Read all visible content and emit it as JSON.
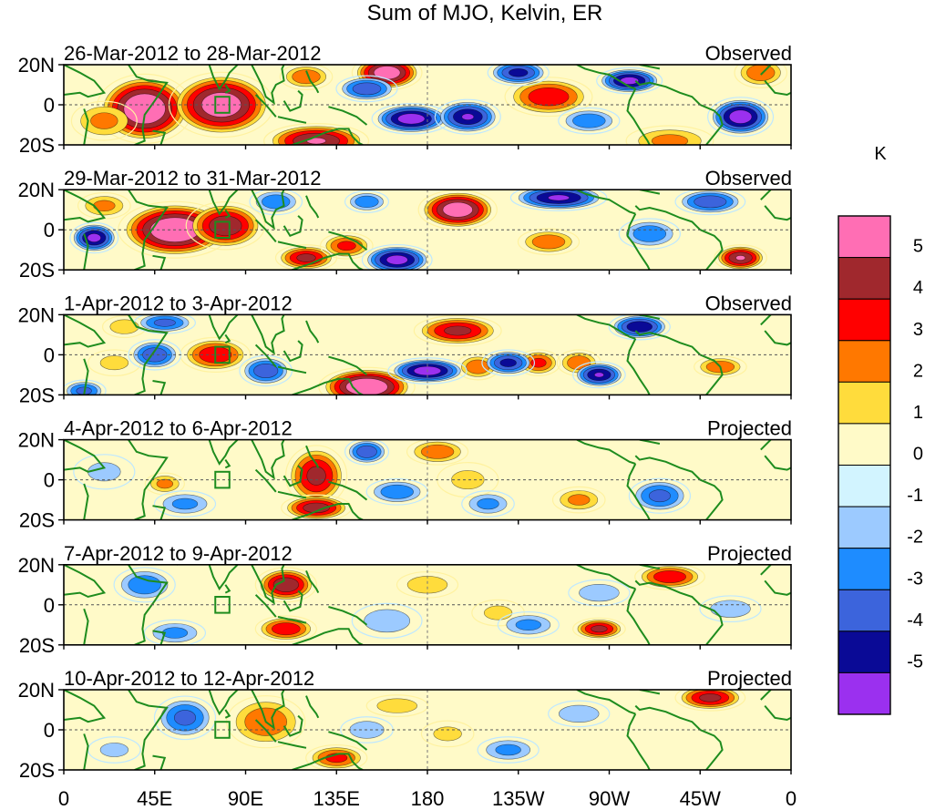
{
  "chart_data": {
    "type": "heatmap",
    "title": "Sum of MJO, Kelvin, ER",
    "colorbar": {
      "unit_label": "K",
      "bins": [
        {
          "color": "#9b30ef"
        },
        {
          "label": "-5",
          "color": "#0a0a96"
        },
        {
          "label": "-4",
          "color": "#3c64dc"
        },
        {
          "label": "-3",
          "color": "#1e8cff"
        },
        {
          "label": "-2",
          "color": "#9ccaff"
        },
        {
          "label": "-1",
          "color": "#d2f4ff"
        },
        {
          "label": "0",
          "color": "#fffac8"
        },
        {
          "label": "1",
          "color": "#ffdc3c"
        },
        {
          "label": "2",
          "color": "#ff7800"
        },
        {
          "label": "3",
          "color": "#ff0000"
        },
        {
          "label": "4",
          "color": "#a0282d"
        },
        {
          "label": "5",
          "color": "#ff6eb4"
        }
      ]
    },
    "x_ticks": [
      {
        "label": "0",
        "lon": 0
      },
      {
        "label": "45E",
        "lon": 45
      },
      {
        "label": "90E",
        "lon": 90
      },
      {
        "label": "135E",
        "lon": 135
      },
      {
        "label": "180",
        "lon": 180
      },
      {
        "label": "135W",
        "lon": 225
      },
      {
        "label": "90W",
        "lon": 270
      },
      {
        "label": "45W",
        "lon": 315
      },
      {
        "label": "0",
        "lon": 360
      }
    ],
    "y_ticks": [
      {
        "label": "20N",
        "lat": 20
      },
      {
        "label": "0",
        "lat": 0
      },
      {
        "label": "20S",
        "lat": -20
      }
    ],
    "xlim": [
      0,
      360
    ],
    "ylim": [
      -20,
      20
    ],
    "panels": [
      {
        "date_range": "26-Mar-2012 to 28-Mar-2012",
        "status": "Observed",
        "blobs": [
          {
            "lon": 40,
            "lat": -2,
            "w": 22,
            "h": 16,
            "amp": 6.4
          },
          {
            "lon": 78,
            "lat": 0,
            "w": 24,
            "h": 15,
            "amp": 6.0
          },
          {
            "lon": 20,
            "lat": -8,
            "w": 15,
            "h": 9,
            "amp": 2.5
          },
          {
            "lon": 160,
            "lat": 16,
            "w": 16,
            "h": 8,
            "amp": 6.0
          },
          {
            "lon": 125,
            "lat": -18,
            "w": 24,
            "h": 8,
            "amp": 5.2
          },
          {
            "lon": 120,
            "lat": 14,
            "w": 12,
            "h": 6,
            "amp": 3.0
          },
          {
            "lon": 240,
            "lat": 4,
            "w": 20,
            "h": 9,
            "amp": 4.0
          },
          {
            "lon": 300,
            "lat": -18,
            "w": 20,
            "h": 7,
            "amp": 2.5
          },
          {
            "lon": 345,
            "lat": 16,
            "w": 12,
            "h": 7,
            "amp": 3.0
          },
          {
            "lon": 172,
            "lat": -7,
            "w": 18,
            "h": 7,
            "amp": -5.8
          },
          {
            "lon": 200,
            "lat": -6,
            "w": 15,
            "h": 8,
            "amp": -5.2
          },
          {
            "lon": 150,
            "lat": 8,
            "w": 14,
            "h": 6,
            "amp": -4.0
          },
          {
            "lon": 225,
            "lat": 16,
            "w": 14,
            "h": 6,
            "amp": -4.5
          },
          {
            "lon": 280,
            "lat": 12,
            "w": 15,
            "h": 6,
            "amp": -5.5
          },
          {
            "lon": 335,
            "lat": -6,
            "w": 15,
            "h": 9,
            "amp": -5.8
          },
          {
            "lon": 260,
            "lat": -8,
            "w": 14,
            "h": 6,
            "amp": -3.0
          }
        ]
      },
      {
        "date_range": "29-Mar-2012 to 31-Mar-2012",
        "status": "Observed",
        "blobs": [
          {
            "lon": 55,
            "lat": 0,
            "w": 26,
            "h": 13,
            "amp": 6.4
          },
          {
            "lon": 80,
            "lat": 2,
            "w": 18,
            "h": 11,
            "amp": 5.0
          },
          {
            "lon": 195,
            "lat": 10,
            "w": 18,
            "h": 9,
            "amp": 6.0
          },
          {
            "lon": 120,
            "lat": -14,
            "w": 14,
            "h": 6,
            "amp": 4.5
          },
          {
            "lon": 140,
            "lat": -8,
            "w": 12,
            "h": 6,
            "amp": 3.5
          },
          {
            "lon": 240,
            "lat": -6,
            "w": 14,
            "h": 6,
            "amp": 3.0
          },
          {
            "lon": 335,
            "lat": -14,
            "w": 12,
            "h": 6,
            "amp": 5.2
          },
          {
            "lon": 20,
            "lat": 12,
            "w": 12,
            "h": 6,
            "amp": 2.5
          },
          {
            "lon": 15,
            "lat": -4,
            "w": 11,
            "h": 7,
            "amp": -5.5
          },
          {
            "lon": 165,
            "lat": -15,
            "w": 16,
            "h": 7,
            "amp": -5.6
          },
          {
            "lon": 150,
            "lat": 14,
            "w": 10,
            "h": 5,
            "amp": -3.0
          },
          {
            "lon": 245,
            "lat": 16,
            "w": 22,
            "h": 6,
            "amp": -5.3
          },
          {
            "lon": 320,
            "lat": 14,
            "w": 16,
            "h": 6,
            "amp": -4.0
          },
          {
            "lon": 105,
            "lat": 14,
            "w": 12,
            "h": 6,
            "amp": -3.0
          },
          {
            "lon": 290,
            "lat": -2,
            "w": 14,
            "h": 7,
            "amp": -3.0
          }
        ]
      },
      {
        "date_range": "1-Apr-2012 to 3-Apr-2012",
        "status": "Observed",
        "blobs": [
          {
            "lon": 75,
            "lat": 0,
            "w": 16,
            "h": 8,
            "amp": 4.0
          },
          {
            "lon": 150,
            "lat": -16,
            "w": 22,
            "h": 9,
            "amp": 6.4
          },
          {
            "lon": 195,
            "lat": 12,
            "w": 20,
            "h": 7,
            "amp": 4.5
          },
          {
            "lon": 205,
            "lat": -6,
            "w": 10,
            "h": 6,
            "amp": 3.0
          },
          {
            "lon": 235,
            "lat": -4,
            "w": 10,
            "h": 6,
            "amp": 3.5
          },
          {
            "lon": 255,
            "lat": -4,
            "w": 10,
            "h": 6,
            "amp": 3.0
          },
          {
            "lon": 325,
            "lat": -6,
            "w": 12,
            "h": 5,
            "amp": 3.0
          },
          {
            "lon": 30,
            "lat": 14,
            "w": 10,
            "h": 5,
            "amp": 2.0
          },
          {
            "lon": 25,
            "lat": -4,
            "w": 12,
            "h": 6,
            "amp": 1.5
          },
          {
            "lon": 45,
            "lat": 0,
            "w": 12,
            "h": 7,
            "amp": -4.0
          },
          {
            "lon": 100,
            "lat": -8,
            "w": 12,
            "h": 7,
            "amp": -4.0
          },
          {
            "lon": 180,
            "lat": -8,
            "w": 18,
            "h": 6,
            "amp": -5.8
          },
          {
            "lon": 220,
            "lat": -4,
            "w": 12,
            "h": 6,
            "amp": -4.5
          },
          {
            "lon": 265,
            "lat": -10,
            "w": 12,
            "h": 6,
            "amp": -5.2
          },
          {
            "lon": 285,
            "lat": 14,
            "w": 14,
            "h": 6,
            "amp": -5.0
          },
          {
            "lon": 50,
            "lat": 16,
            "w": 14,
            "h": 5,
            "amp": -3.5
          },
          {
            "lon": 10,
            "lat": -18,
            "w": 10,
            "h": 5,
            "amp": -3.5
          }
        ]
      },
      {
        "date_range": "4-Apr-2012 to 6-Apr-2012",
        "status": "Projected",
        "blobs": [
          {
            "lon": 125,
            "lat": 2,
            "w": 14,
            "h": 14,
            "amp": 4.5
          },
          {
            "lon": 125,
            "lat": -14,
            "w": 16,
            "h": 6,
            "amp": 4.8
          },
          {
            "lon": 185,
            "lat": 14,
            "w": 14,
            "h": 6,
            "amp": 3.0
          },
          {
            "lon": 50,
            "lat": -2,
            "w": 9,
            "h": 5,
            "amp": 2.5
          },
          {
            "lon": 200,
            "lat": 0,
            "w": 14,
            "h": 8,
            "amp": 1.5
          },
          {
            "lon": 255,
            "lat": -10,
            "w": 12,
            "h": 6,
            "amp": 2.5
          },
          {
            "lon": 150,
            "lat": 14,
            "w": 10,
            "h": 6,
            "amp": -4.0
          },
          {
            "lon": 165,
            "lat": -6,
            "w": 14,
            "h": 6,
            "amp": -3.0
          },
          {
            "lon": 210,
            "lat": -12,
            "w": 12,
            "h": 6,
            "amp": -2.5
          },
          {
            "lon": 295,
            "lat": -8,
            "w": 14,
            "h": 8,
            "amp": -3.5
          },
          {
            "lon": 60,
            "lat": -12,
            "w": 14,
            "h": 6,
            "amp": -2.5
          },
          {
            "lon": 20,
            "lat": 4,
            "w": 14,
            "h": 8,
            "amp": -1.5
          }
        ]
      },
      {
        "date_range": "7-Apr-2012 to 9-Apr-2012",
        "status": "Projected",
        "blobs": [
          {
            "lon": 110,
            "lat": 10,
            "w": 14,
            "h": 8,
            "amp": 5.0
          },
          {
            "lon": 110,
            "lat": -12,
            "w": 14,
            "h": 6,
            "amp": 4.0
          },
          {
            "lon": 265,
            "lat": -12,
            "w": 12,
            "h": 5,
            "amp": 4.5
          },
          {
            "lon": 300,
            "lat": 14,
            "w": 16,
            "h": 6,
            "amp": 4.0
          },
          {
            "lon": 180,
            "lat": 10,
            "w": 14,
            "h": 6,
            "amp": 2.0
          },
          {
            "lon": 215,
            "lat": -4,
            "w": 12,
            "h": 6,
            "amp": 1.5
          },
          {
            "lon": 40,
            "lat": 10,
            "w": 14,
            "h": 8,
            "amp": -3.0
          },
          {
            "lon": 55,
            "lat": -14,
            "w": 14,
            "h": 6,
            "amp": -2.5
          },
          {
            "lon": 160,
            "lat": -8,
            "w": 16,
            "h": 8,
            "amp": -2.0
          },
          {
            "lon": 230,
            "lat": -10,
            "w": 14,
            "h": 6,
            "amp": -2.5
          },
          {
            "lon": 265,
            "lat": 6,
            "w": 14,
            "h": 6,
            "amp": -2.0
          },
          {
            "lon": 330,
            "lat": -2,
            "w": 14,
            "h": 6,
            "amp": -2.0
          }
        ]
      },
      {
        "date_range": "10-Apr-2012 to 12-Apr-2012",
        "status": "Projected",
        "blobs": [
          {
            "lon": 100,
            "lat": 4,
            "w": 18,
            "h": 12,
            "amp": 3.0
          },
          {
            "lon": 135,
            "lat": -14,
            "w": 14,
            "h": 6,
            "amp": 3.5
          },
          {
            "lon": 320,
            "lat": 16,
            "w": 16,
            "h": 6,
            "amp": 4.5
          },
          {
            "lon": 165,
            "lat": 12,
            "w": 14,
            "h": 5,
            "amp": 2.0
          },
          {
            "lon": 190,
            "lat": -2,
            "w": 12,
            "h": 6,
            "amp": 1.5
          },
          {
            "lon": 60,
            "lat": 6,
            "w": 14,
            "h": 10,
            "amp": -3.5
          },
          {
            "lon": 150,
            "lat": 0,
            "w": 12,
            "h": 6,
            "amp": -2.0
          },
          {
            "lon": 220,
            "lat": -10,
            "w": 14,
            "h": 6,
            "amp": -2.5
          },
          {
            "lon": 255,
            "lat": 8,
            "w": 14,
            "h": 6,
            "amp": -2.0
          },
          {
            "lon": 25,
            "lat": -10,
            "w": 12,
            "h": 6,
            "amp": -1.5
          }
        ]
      }
    ]
  }
}
